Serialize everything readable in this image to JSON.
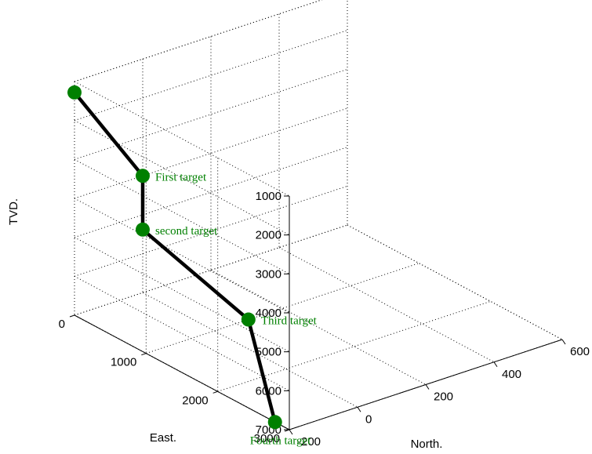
{
  "chart_data": {
    "type": "line3d",
    "axes": {
      "x": {
        "label": "North.",
        "ticks": [
          -200,
          0,
          200,
          400,
          600
        ],
        "range": [
          -200,
          600
        ]
      },
      "y": {
        "label": "East.",
        "ticks": [
          0,
          1000,
          2000,
          3000
        ],
        "range": [
          0,
          3000
        ]
      },
      "z": {
        "label": "TVD.",
        "ticks": [
          1000,
          2000,
          3000,
          4000,
          5000,
          6000,
          7000
        ],
        "range": [
          1000,
          7000
        ],
        "reversed": true
      }
    },
    "grid": true,
    "line_color": "#000000",
    "marker_color": "#008000",
    "label_color": "#008000",
    "points": [
      {
        "label": "",
        "north": -200,
        "east": 0,
        "tvd": 1280
      },
      {
        "label": "First target",
        "north": 0,
        "east": 0,
        "tvd": 4000
      },
      {
        "label": "second target",
        "north": 0,
        "east": 0,
        "tvd": 5380
      },
      {
        "label": "Third target",
        "north": 100,
        "east": 1000,
        "tvd": 7000
      },
      {
        "label": "Fourth target",
        "north": -200,
        "east": 2800,
        "tvd": 7000
      }
    ]
  }
}
